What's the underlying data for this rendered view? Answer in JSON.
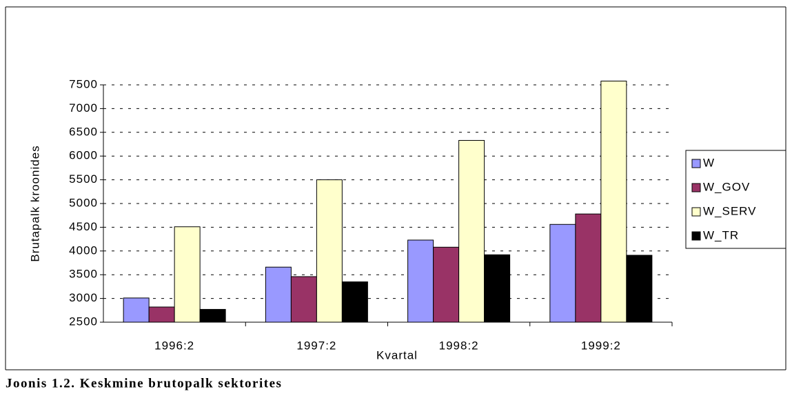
{
  "chart_data": {
    "type": "bar",
    "caption": "Joonis 1.2. Keskmine brutopalk sektorites",
    "x_label": "Kvartal",
    "y_label": "Brutapalk kroonides",
    "categories": [
      "1996:2",
      "1997:2",
      "1998:2",
      "1999:2"
    ],
    "series": [
      {
        "name": "W",
        "color": "#9999ff",
        "values": [
          3010,
          3660,
          4230,
          4560
        ]
      },
      {
        "name": "W_GOV",
        "color": "#993366",
        "values": [
          2820,
          3460,
          4080,
          4780
        ]
      },
      {
        "name": "W_SERV",
        "color": "#ffffcc",
        "values": [
          4510,
          5500,
          6330,
          7580
        ]
      },
      {
        "name": "W_TR",
        "color": "#000000",
        "values": [
          2770,
          3350,
          3920,
          3910
        ]
      }
    ],
    "ylim": [
      2500,
      7500
    ],
    "yticks": [
      2500,
      3000,
      3500,
      4000,
      4500,
      5000,
      5500,
      6000,
      6500,
      7000,
      7500
    ],
    "grid": true,
    "legend": "right"
  }
}
